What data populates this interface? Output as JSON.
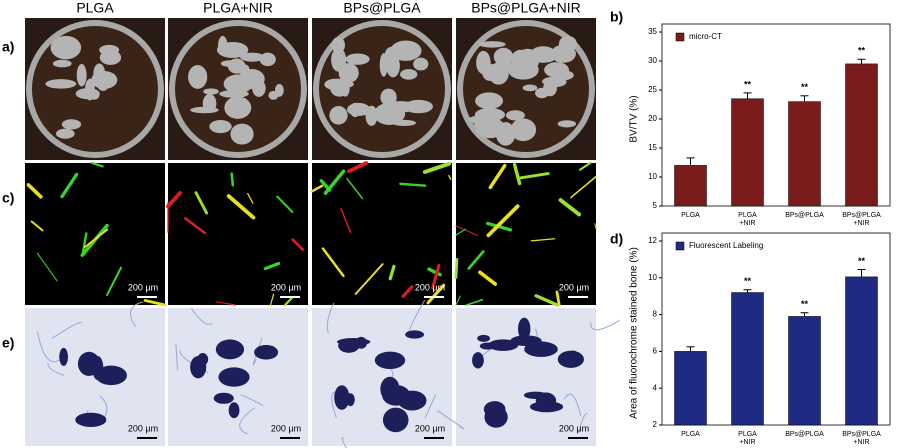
{
  "figure": {
    "column_headers": [
      "PLGA",
      "PLGA+NIR",
      "BPs@PLGA",
      "BPs@PLGA+NIR"
    ],
    "row_labels": [
      "a)",
      "c)",
      "e)"
    ],
    "scale_bar": "200 µm"
  },
  "chart_data": [
    {
      "type": "bar",
      "panel_label": "b)",
      "y_label": "BV/TV (%)",
      "legend": "micro-CT",
      "categories": [
        [
          "PLGA"
        ],
        [
          "PLGA",
          "+NIR"
        ],
        [
          "BPs@PLGA"
        ],
        [
          "BPs@PLGA",
          "+NIR"
        ]
      ],
      "values": [
        12,
        23.5,
        23,
        29.5
      ],
      "errors": [
        1.3,
        1.0,
        1.0,
        0.8
      ],
      "significance": [
        null,
        "**",
        "**",
        "**"
      ],
      "color": "#7b1c1c",
      "ylim": [
        5,
        35
      ],
      "yticks": [
        5,
        10,
        15,
        20,
        25,
        30,
        35
      ]
    },
    {
      "type": "bar",
      "panel_label": "d)",
      "y_label": "Area of fluorochrome stained bone (%)",
      "legend": "Fluorescent Labeling",
      "categories": [
        [
          "PLGA"
        ],
        [
          "PLGA",
          "+NIR"
        ],
        [
          "BPs@PLGA"
        ],
        [
          "BPs@PLGA",
          "+NIR"
        ]
      ],
      "values": [
        6,
        9.2,
        7.9,
        10.05
      ],
      "errors": [
        0.25,
        0.15,
        0.2,
        0.4
      ],
      "significance": [
        null,
        "**",
        "**",
        "**"
      ],
      "color": "#1f2a82",
      "ylim": [
        2,
        12
      ],
      "yticks": [
        2,
        4,
        6,
        8,
        10,
        12
      ]
    }
  ]
}
